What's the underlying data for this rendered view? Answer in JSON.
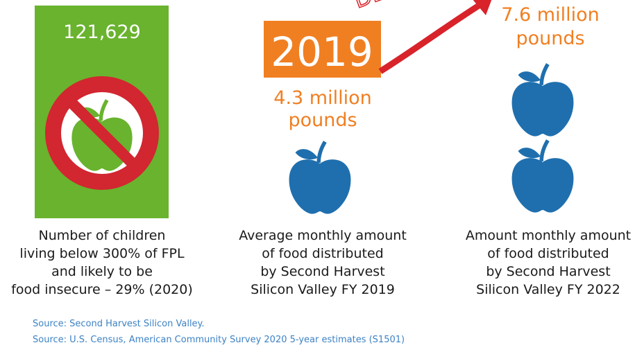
{
  "panels": [
    {
      "figure": "121,629",
      "caption": [
        "Number of children",
        "living below 300% of FPL",
        "and likely to be",
        "food insecure – 29% (2020)"
      ]
    },
    {
      "year": "2019",
      "amount": [
        "4.3 million",
        "pounds"
      ],
      "caption": [
        "Average monthly amount",
        "of food distributed",
        "by Second Harvest",
        "Silicon Valley FY 2019"
      ]
    },
    {
      "banner": "DE",
      "amount": [
        "7.6 million",
        "pounds"
      ],
      "caption": [
        "Amount monthly amount",
        "of food distributed",
        "by Second Harvest",
        "Silicon Valley FY 2022"
      ]
    }
  ],
  "sources": [
    "Source: Second Harvest Silicon Valley.",
    "Source: U.S. Census, American Community Survey 2020 5-year estimates (S1501)"
  ]
}
